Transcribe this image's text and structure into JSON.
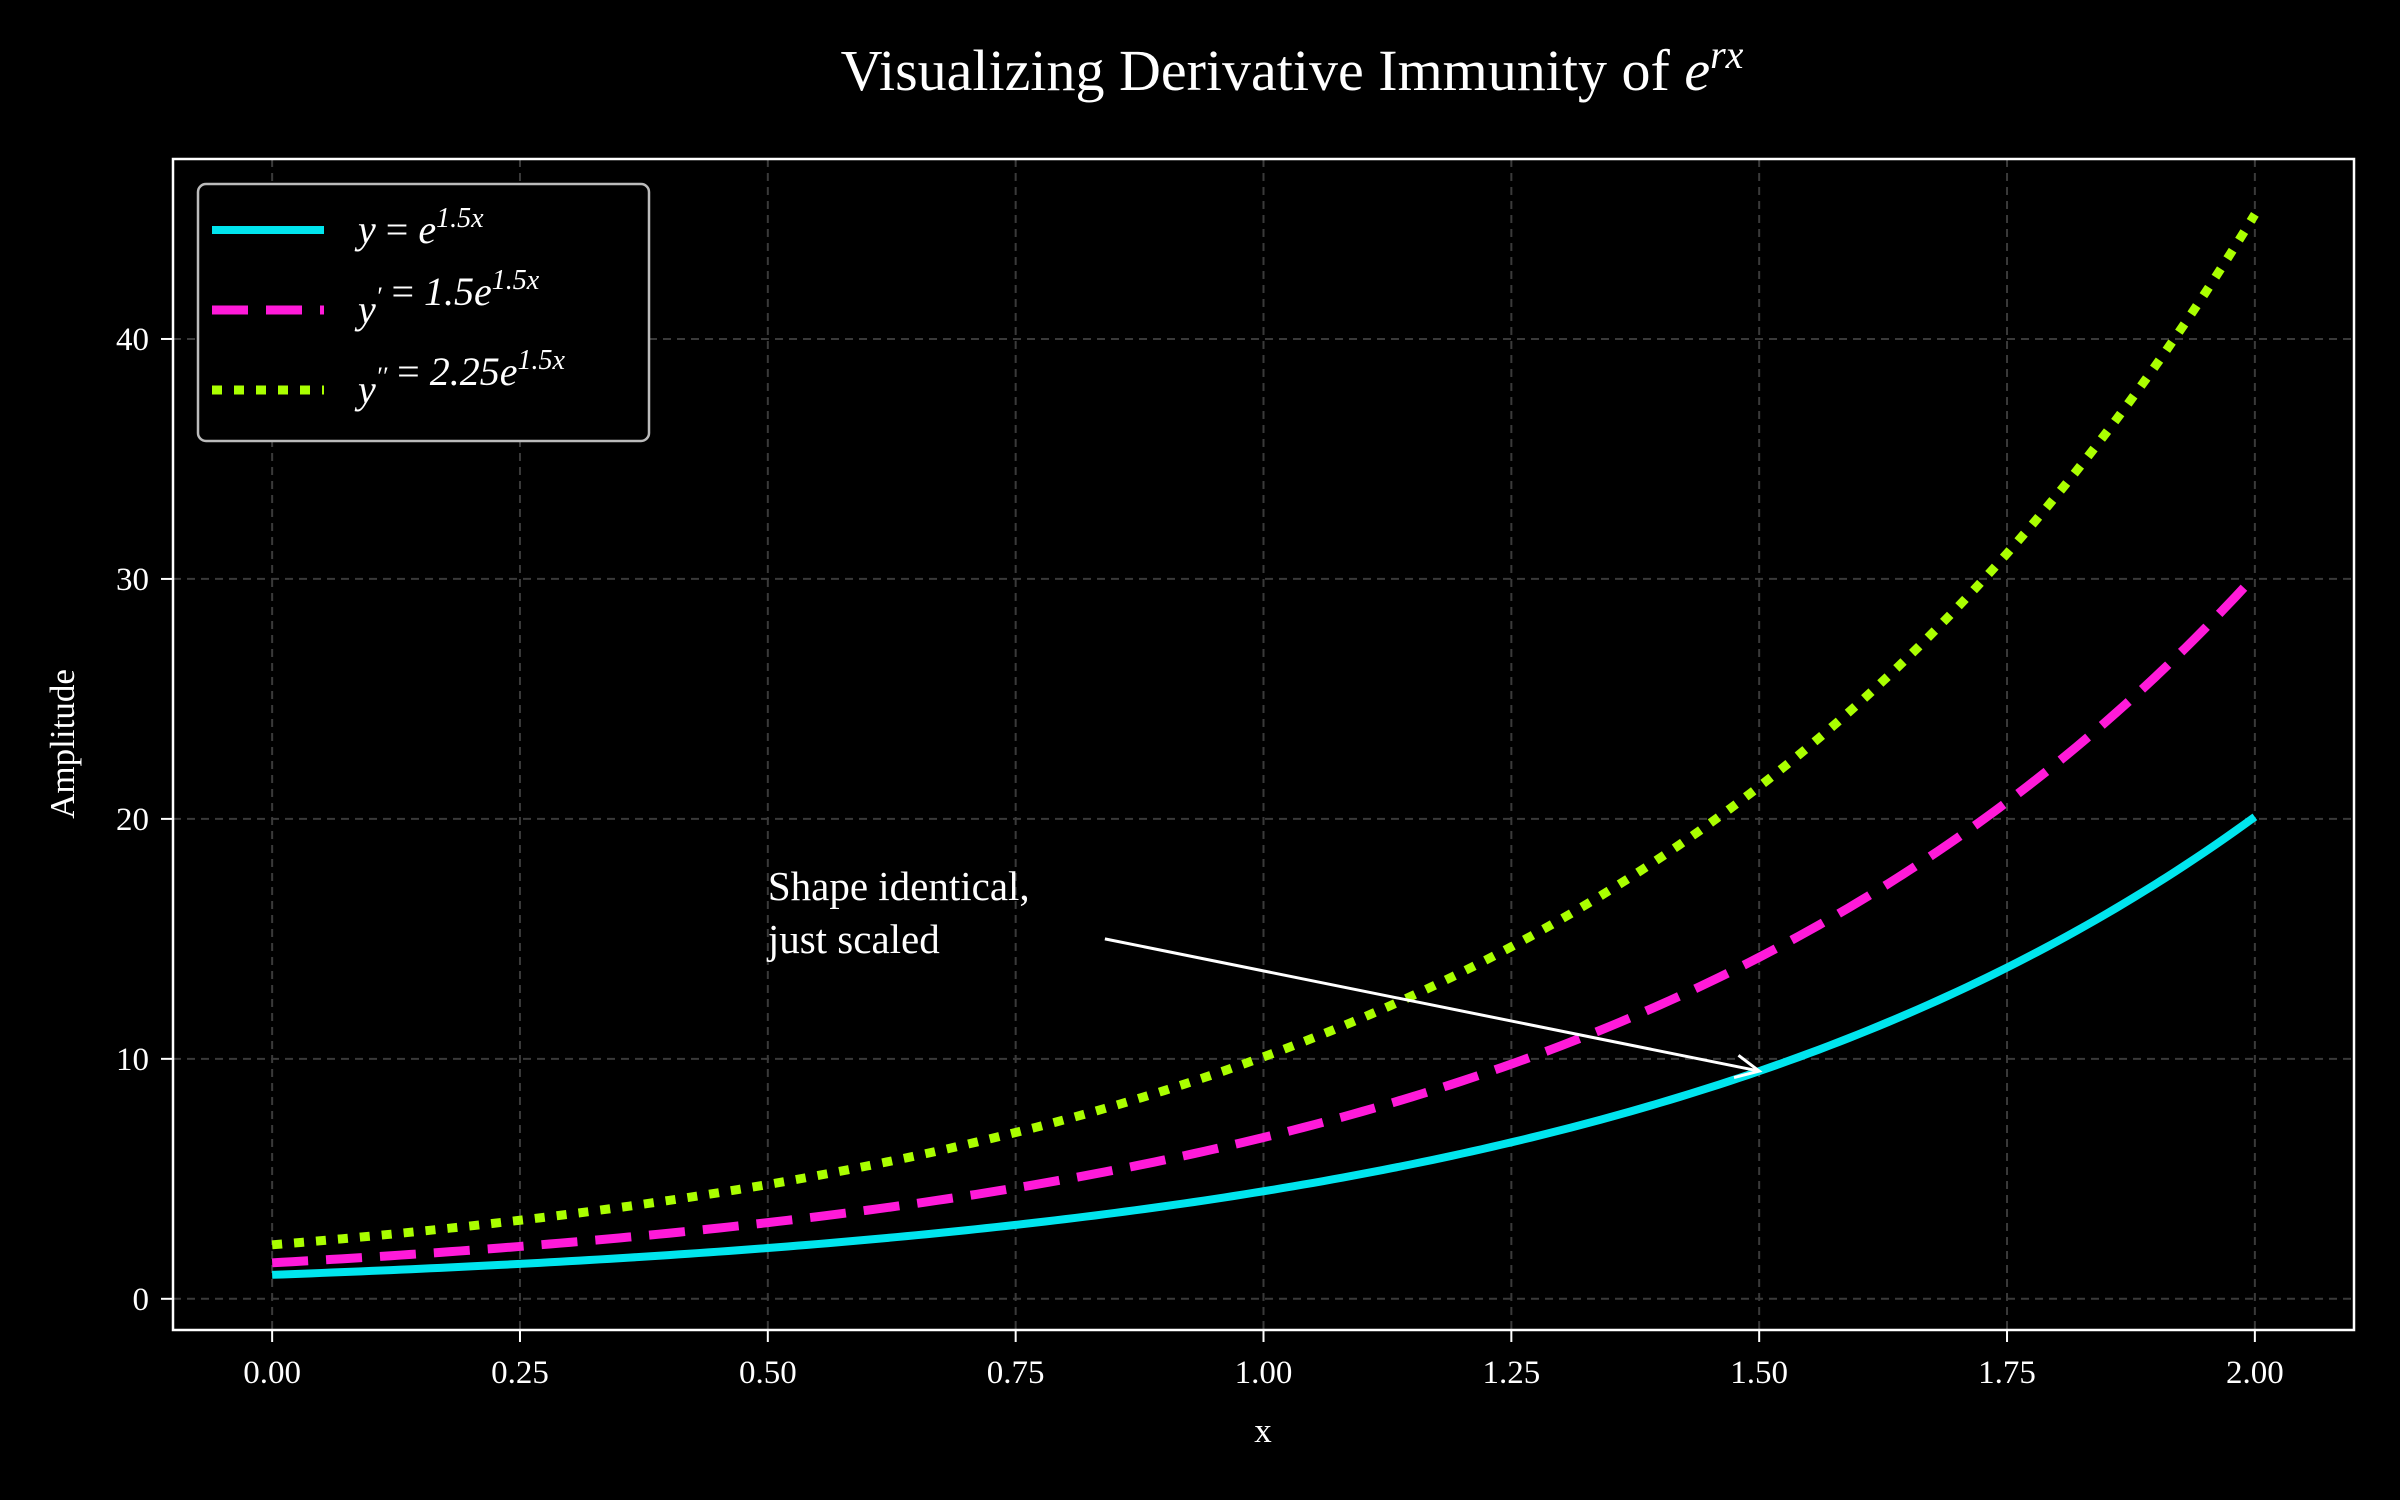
{
  "chart_data": {
    "type": "line",
    "title": {
      "main": "Visualizing Derivative Immunity of ",
      "math_base": "e",
      "math_sup": "rx"
    },
    "xlabel": "x",
    "ylabel": "Amplitude",
    "xlim": [
      -0.1,
      2.1
    ],
    "ylim": [
      -1.3,
      47.5
    ],
    "x_ticks": [
      0.0,
      0.25,
      0.5,
      0.75,
      1.0,
      1.25,
      1.5,
      1.75,
      2.0
    ],
    "x_tick_labels": [
      "0.00",
      "0.25",
      "0.50",
      "0.75",
      "1.00",
      "1.25",
      "1.50",
      "1.75",
      "2.00"
    ],
    "y_ticks": [
      0,
      10,
      20,
      30,
      40
    ],
    "y_tick_labels": [
      "0",
      "10",
      "20",
      "30",
      "40"
    ],
    "grid": true,
    "legend_position": "top-left",
    "x_domain": [
      0,
      2
    ],
    "series": [
      {
        "name": "y = e^{1.5x}",
        "legend_parts": {
          "lhs": "y",
          "eq": " = ",
          "coef": "",
          "base": "e",
          "sup": "1.5x",
          "primes": ""
        },
        "coefficient": 1.0,
        "rate": 1.5,
        "color": "#00e5ee",
        "style": "solid"
      },
      {
        "name": "y' = 1.5e^{1.5x}",
        "legend_parts": {
          "lhs": "y",
          "eq": " = ",
          "coef": "1.5",
          "base": "e",
          "sup": "1.5x",
          "primes": "′"
        },
        "coefficient": 1.5,
        "rate": 1.5,
        "color": "#ff1ad9",
        "style": "dashed"
      },
      {
        "name": "y'' = 2.25e^{1.5x}",
        "legend_parts": {
          "lhs": "y",
          "eq": " = ",
          "coef": "2.25",
          "base": "e",
          "sup": "1.5x",
          "primes": "′′"
        },
        "coefficient": 2.25,
        "rate": 1.5,
        "color": "#aaff00",
        "style": "dotted"
      }
    ],
    "annotation": {
      "lines": [
        "Shape identical,",
        "just scaled"
      ],
      "text_at": [
        0.5,
        16.5
      ],
      "arrow_from": [
        0.84,
        15.0
      ],
      "arrow_to": [
        1.5,
        9.49
      ]
    },
    "colors": {
      "background": "#000000",
      "foreground": "#ffffff",
      "grid": "#3a3a3a",
      "legend_border": "#bbbbbb"
    }
  }
}
